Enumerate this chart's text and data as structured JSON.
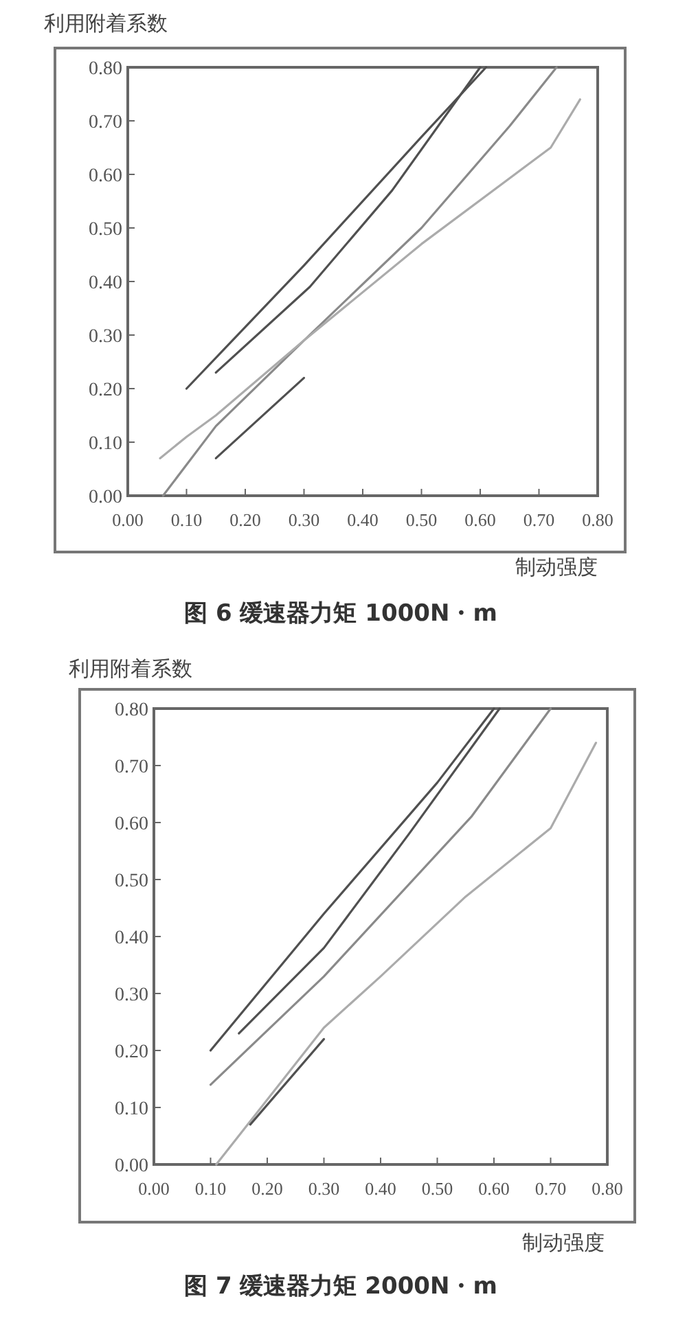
{
  "chart_data": [
    {
      "type": "line",
      "title": "图 6  缓速器力矩 1000N・m",
      "xlabel": "制动强度",
      "ylabel": "利用附着系数",
      "xlim": [
        0,
        0.8
      ],
      "ylim": [
        0,
        0.8
      ],
      "xticks": [
        {
          "value": 0,
          "label": "0.00"
        },
        {
          "value": 0.1,
          "label": "0.10"
        },
        {
          "value": 0.2,
          "label": "0.20"
        },
        {
          "value": 0.3,
          "label": "0.30"
        },
        {
          "value": 0.4,
          "label": "0.40"
        },
        {
          "value": 0.5,
          "label": "0.50"
        },
        {
          "value": 0.6,
          "label": "0.60"
        },
        {
          "value": 0.7,
          "label": "0.70"
        },
        {
          "value": 0.8,
          "label": "0.80"
        }
      ],
      "yticks": [
        {
          "value": 0,
          "label": "0.00"
        },
        {
          "value": 0.1,
          "label": "0.10"
        },
        {
          "value": 0.2,
          "label": "0.20"
        },
        {
          "value": 0.3,
          "label": "0.30"
        },
        {
          "value": 0.4,
          "label": "0.40"
        },
        {
          "value": 0.5,
          "label": "0.50"
        },
        {
          "value": 0.6,
          "label": "0.60"
        },
        {
          "value": 0.7,
          "label": "0.70"
        },
        {
          "value": 0.8,
          "label": "0.80"
        }
      ],
      "series": [
        {
          "color": "#505050",
          "x": [
            0.1,
            0.3,
            0.5,
            0.61
          ],
          "values": [
            0.2,
            0.43,
            0.67,
            0.8
          ]
        },
        {
          "color": "#505050",
          "x": [
            0.15,
            0.31,
            0.45,
            0.6
          ],
          "values": [
            0.23,
            0.39,
            0.57,
            0.8
          ]
        },
        {
          "color": "#8a8a8a",
          "x": [
            0.06,
            0.15,
            0.3,
            0.5,
            0.65,
            0.73
          ],
          "values": [
            0.0,
            0.13,
            0.29,
            0.5,
            0.69,
            0.8
          ]
        },
        {
          "color": "#ababab",
          "x": [
            0.055,
            0.1,
            0.15,
            0.3,
            0.5,
            0.72,
            0.77
          ],
          "values": [
            0.07,
            0.11,
            0.15,
            0.29,
            0.47,
            0.65,
            0.74
          ]
        },
        {
          "color": "#505050",
          "x": [
            0.15,
            0.3
          ],
          "values": [
            0.07,
            0.22
          ]
        }
      ]
    },
    {
      "type": "line",
      "title": "图 7  缓速器力矩 2000N・m",
      "xlabel": "制动强度",
      "ylabel": "利用附着系数",
      "xlim": [
        0,
        0.8
      ],
      "ylim": [
        0,
        0.8
      ],
      "xticks": [
        {
          "value": 0,
          "label": "0.00"
        },
        {
          "value": 0.1,
          "label": "0.10"
        },
        {
          "value": 0.2,
          "label": "0.20"
        },
        {
          "value": 0.3,
          "label": "0.30"
        },
        {
          "value": 0.4,
          "label": "0.40"
        },
        {
          "value": 0.5,
          "label": "0.50"
        },
        {
          "value": 0.6,
          "label": "0.60"
        },
        {
          "value": 0.7,
          "label": "0.70"
        },
        {
          "value": 0.8,
          "label": "0.80"
        }
      ],
      "yticks": [
        {
          "value": 0,
          "label": "0.00"
        },
        {
          "value": 0.1,
          "label": "0.10"
        },
        {
          "value": 0.2,
          "label": "0.20"
        },
        {
          "value": 0.3,
          "label": "0.30"
        },
        {
          "value": 0.4,
          "label": "0.40"
        },
        {
          "value": 0.5,
          "label": "0.50"
        },
        {
          "value": 0.6,
          "label": "0.60"
        },
        {
          "value": 0.7,
          "label": "0.70"
        },
        {
          "value": 0.8,
          "label": "0.80"
        }
      ],
      "series": [
        {
          "color": "#505050",
          "x": [
            0.1,
            0.3,
            0.5,
            0.6
          ],
          "values": [
            0.2,
            0.44,
            0.67,
            0.8
          ]
        },
        {
          "color": "#505050",
          "x": [
            0.15,
            0.3,
            0.45,
            0.61
          ],
          "values": [
            0.23,
            0.38,
            0.58,
            0.8
          ]
        },
        {
          "color": "#8a8a8a",
          "x": [
            0.1,
            0.3,
            0.56,
            0.7
          ],
          "values": [
            0.14,
            0.33,
            0.61,
            0.8
          ]
        },
        {
          "color": "#ababab",
          "x": [
            0.11,
            0.3,
            0.4,
            0.55,
            0.7,
            0.78
          ],
          "values": [
            0.0,
            0.24,
            0.33,
            0.47,
            0.59,
            0.74
          ]
        },
        {
          "color": "#505050",
          "x": [
            0.17,
            0.3
          ],
          "values": [
            0.07,
            0.22
          ]
        }
      ]
    }
  ]
}
